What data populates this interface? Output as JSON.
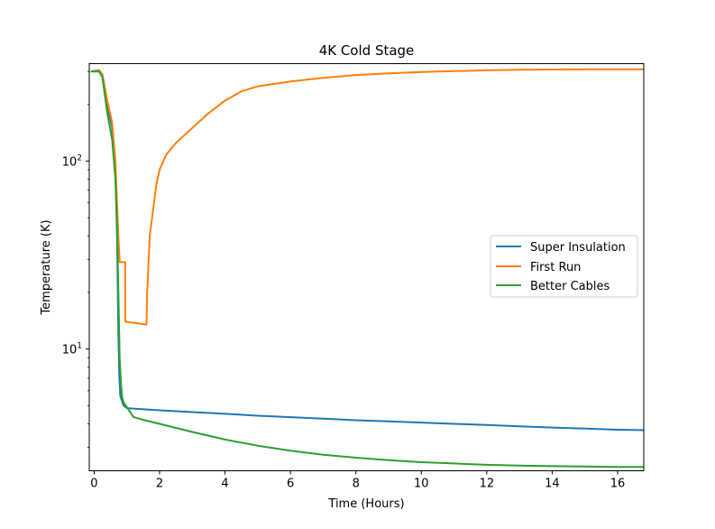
{
  "chart_data": {
    "type": "line",
    "title": "4K Cold Stage",
    "xlabel": "Time (Hours)",
    "ylabel": "Temperature (K)",
    "xlim": [
      -0.15,
      16.8
    ],
    "ylim": [
      2.25,
      330
    ],
    "yscale": "log",
    "xticks": [
      0,
      2,
      4,
      6,
      8,
      10,
      12,
      14,
      16
    ],
    "yticks": [
      {
        "value": 10,
        "base": "10",
        "exp": "1"
      },
      {
        "value": 100,
        "base": "10",
        "exp": "2"
      }
    ],
    "legend": "center-right",
    "grid": false,
    "series": [
      {
        "name": "Super Insulation",
        "color": "#1f77b4",
        "x": [
          -0.1,
          0.15,
          0.25,
          0.4,
          0.55,
          0.65,
          0.7,
          0.74,
          0.77,
          0.8,
          0.85,
          0.9,
          1.0,
          1.5,
          2,
          3,
          4,
          5,
          6,
          7,
          8,
          9,
          10,
          11,
          12,
          13,
          14,
          15,
          16,
          16.8
        ],
        "y": [
          300,
          300,
          290,
          200,
          150,
          90,
          40,
          12,
          7,
          5.6,
          5.3,
          5.0,
          4.85,
          4.78,
          4.72,
          4.62,
          4.52,
          4.42,
          4.34,
          4.26,
          4.18,
          4.12,
          4.06,
          4.0,
          3.94,
          3.88,
          3.82,
          3.77,
          3.72,
          3.7
        ]
      },
      {
        "name": "First Run",
        "color": "#ff7f0e",
        "x": [
          -0.1,
          0.15,
          0.25,
          0.4,
          0.55,
          0.65,
          0.7,
          0.74,
          0.78,
          0.78,
          0.95,
          0.95,
          1.6,
          1.62,
          1.7,
          1.8,
          1.9,
          2.0,
          2.2,
          2.5,
          3.0,
          3.5,
          4.0,
          4.5,
          5.0,
          6,
          7,
          8,
          9,
          10,
          11,
          12,
          13,
          14,
          15,
          16,
          16.8
        ],
        "y": [
          300,
          305,
          290,
          210,
          160,
          100,
          60,
          40,
          29,
          29,
          29,
          14,
          13.5,
          20,
          40,
          55,
          75,
          90,
          108,
          125,
          150,
          180,
          210,
          235,
          250,
          265,
          277,
          287,
          293,
          298,
          301,
          304,
          306,
          307,
          308,
          308,
          308
        ]
      },
      {
        "name": "Better Cables",
        "color": "#2ca02c",
        "x": [
          -0.1,
          0.15,
          0.25,
          0.4,
          0.55,
          0.65,
          0.7,
          0.74,
          0.78,
          0.82,
          0.86,
          0.9,
          1.0,
          1.2,
          1.5,
          2,
          3,
          4,
          5,
          6,
          7,
          8,
          9,
          10,
          11,
          12,
          13,
          14,
          15,
          16,
          16.8
        ],
        "y": [
          300,
          300,
          280,
          180,
          130,
          80,
          45,
          20,
          9,
          6.5,
          5.5,
          5.2,
          4.9,
          4.35,
          4.2,
          4.0,
          3.62,
          3.3,
          3.06,
          2.88,
          2.74,
          2.64,
          2.56,
          2.5,
          2.46,
          2.42,
          2.4,
          2.38,
          2.37,
          2.36,
          2.36
        ]
      }
    ]
  }
}
